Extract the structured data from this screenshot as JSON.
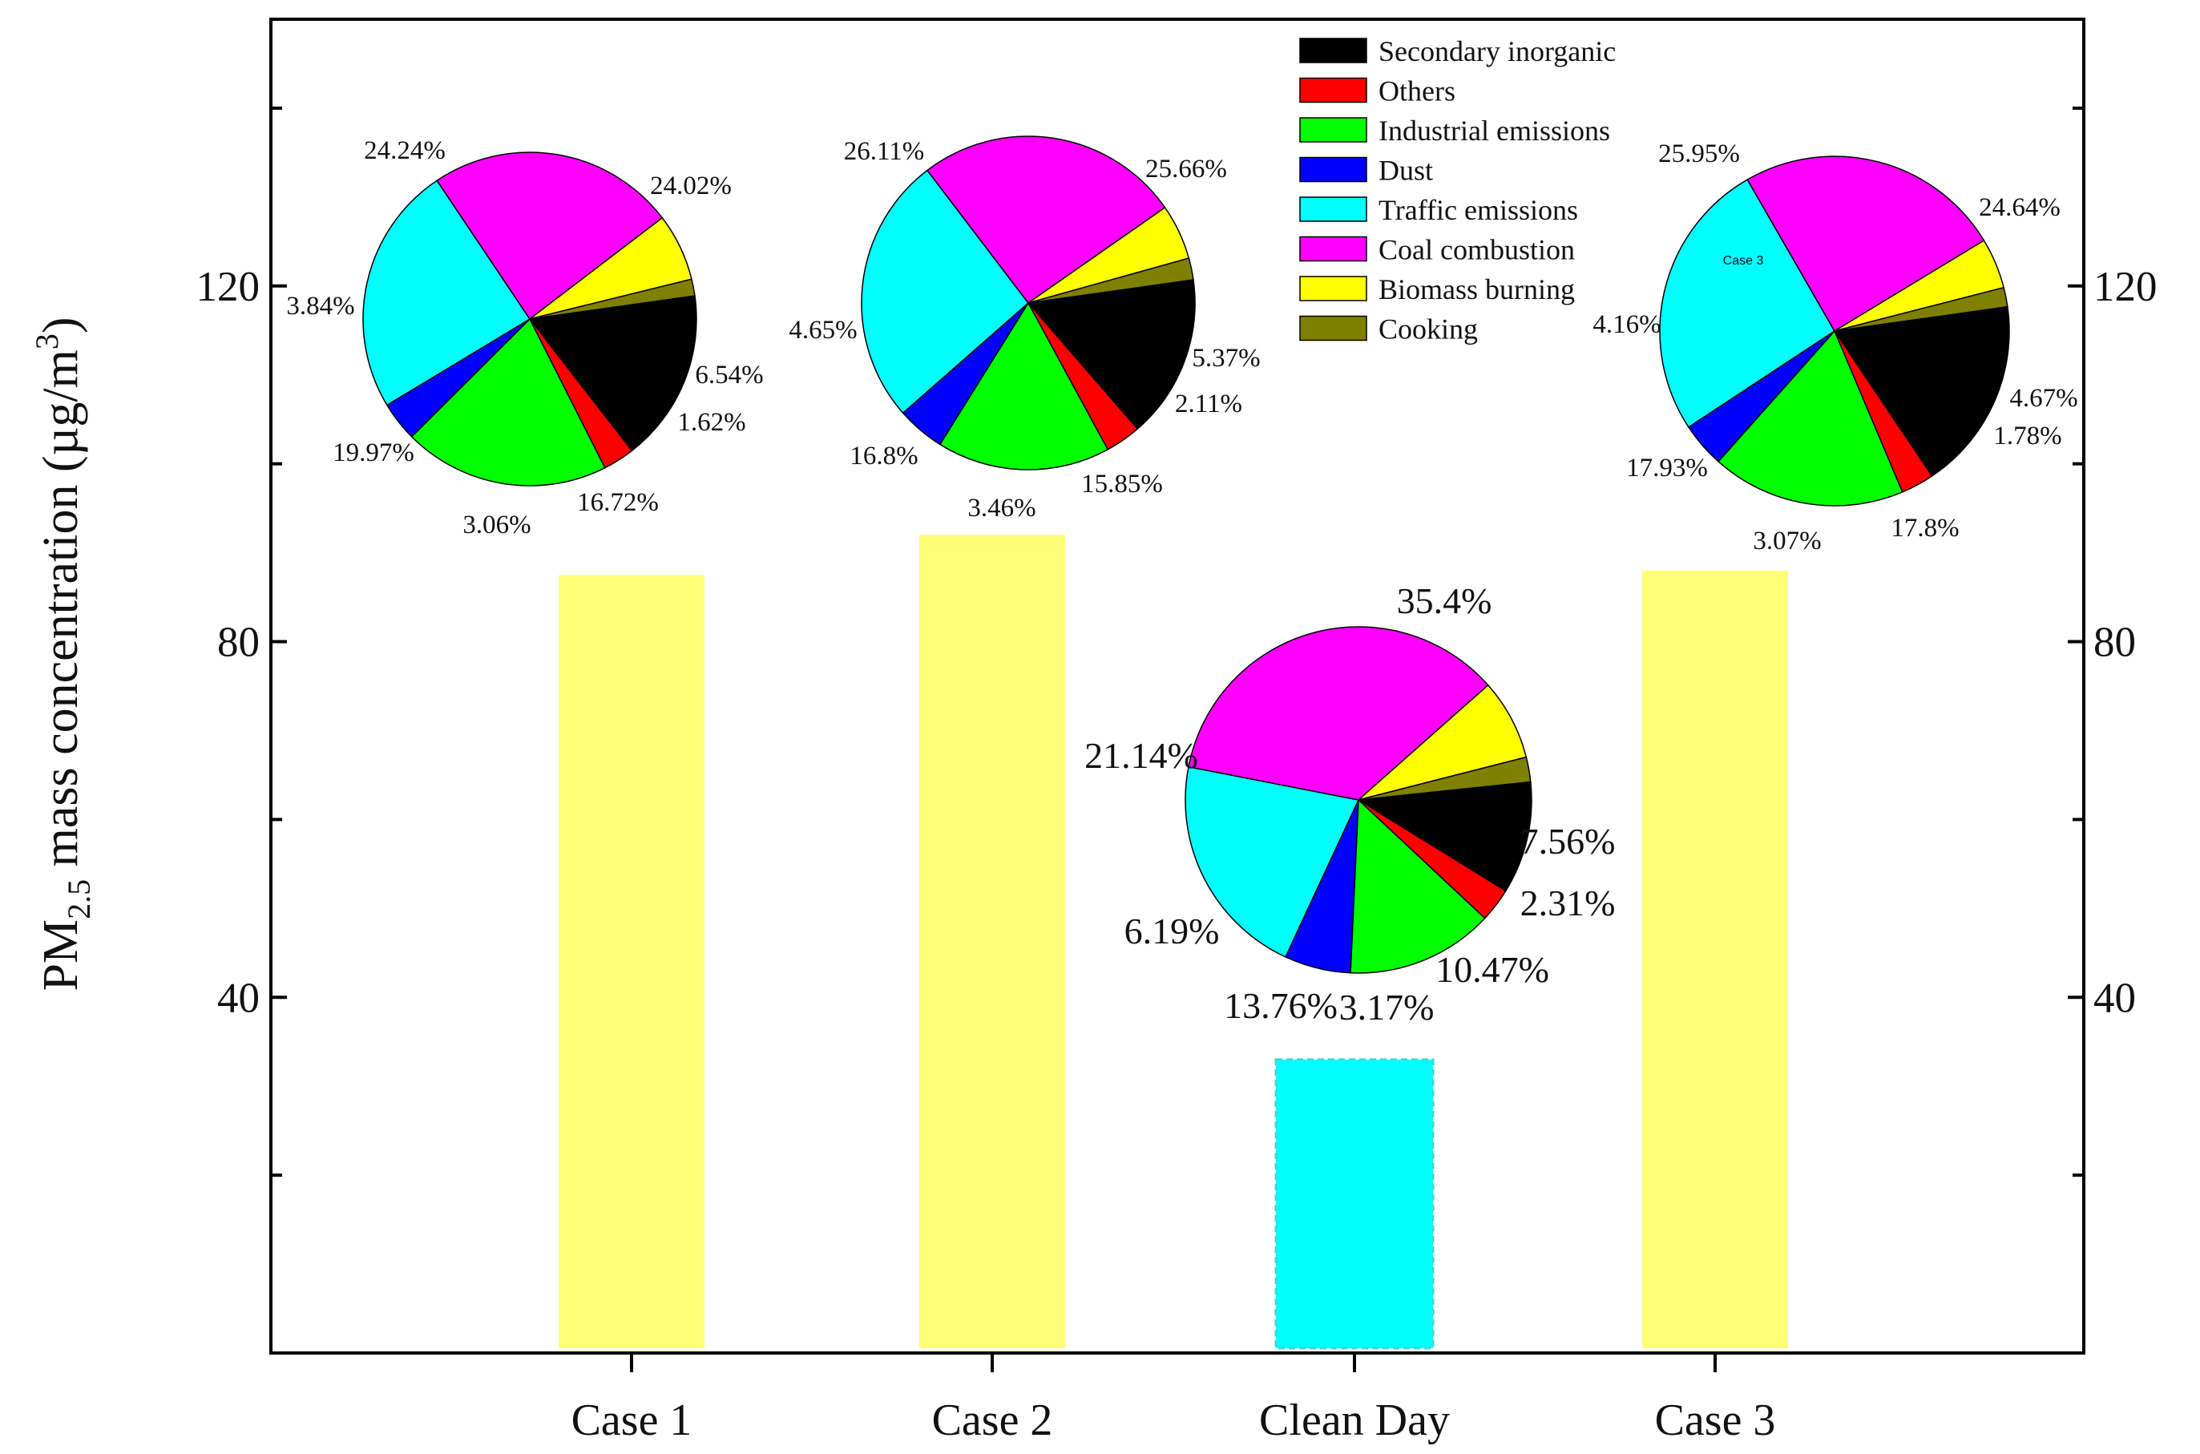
{
  "chart_data": {
    "type": "bar",
    "ylabel": {
      "prefix": "PM",
      "sub": "2.5",
      "middle": " mass concentration (µg/m",
      "sup": "3",
      "suffix": ")"
    },
    "ylim": [
      0,
      150
    ],
    "yticks": [
      40,
      80,
      120
    ],
    "categories": [
      "Case 1",
      "Case 2",
      "Clean Day",
      "Case 3"
    ],
    "values": [
      87.5,
      92,
      33,
      88
    ],
    "bar_colors": [
      "#ffff77",
      "#ffff77",
      "#00ffff",
      "#ffff77"
    ],
    "legend": [
      {
        "label": "Secondary inorganic",
        "color": "#000000"
      },
      {
        "label": "Others",
        "color": "#ff0000"
      },
      {
        "label": "Industrial emissions",
        "color": "#00ff00"
      },
      {
        "label": "Dust",
        "color": "#0000ff"
      },
      {
        "label": "Traffic emissions",
        "color": "#00ffff"
      },
      {
        "label": "Coal combustion",
        "color": "#ff00ff"
      },
      {
        "label": "Biomass burning",
        "color": "#ffff00"
      },
      {
        "label": "Cooking",
        "color": "#808000"
      }
    ],
    "pies": [
      {
        "name": "Case 1",
        "values": [
          16.72,
          3.06,
          19.97,
          3.84,
          24.24,
          24.02,
          6.54,
          1.62
        ],
        "labels": [
          "16.72%",
          "3.06%",
          "19.97%",
          "3.84%",
          "24.24%",
          "24.02%",
          "6.54%",
          "1.62%"
        ]
      },
      {
        "name": "Case 2",
        "values": [
          15.85,
          3.46,
          16.8,
          4.65,
          26.11,
          25.66,
          5.37,
          2.11
        ],
        "labels": [
          "15.85%",
          "3.46%",
          "16.8%",
          "4.65%",
          "26.11%",
          "25.66%",
          "5.37%",
          "2.11%"
        ]
      },
      {
        "name": "Clean Day",
        "values": [
          10.47,
          3.17,
          13.76,
          6.19,
          21.14,
          35.4,
          7.56,
          2.31
        ],
        "labels": [
          "10.47%",
          "3.17%",
          "13.76%",
          "6.19%",
          "21.14%",
          "35.4%",
          "7.56%",
          "2.31%"
        ]
      },
      {
        "name": "Case 3",
        "values": [
          17.8,
          3.07,
          17.93,
          4.16,
          25.95,
          24.64,
          4.67,
          1.78
        ],
        "labels": [
          "17.8%",
          "3.07%",
          "17.93%",
          "4.16%",
          "25.95%",
          "24.64%",
          "4.67%",
          "1.78%"
        ],
        "inset_label": "Case 3"
      }
    ]
  }
}
